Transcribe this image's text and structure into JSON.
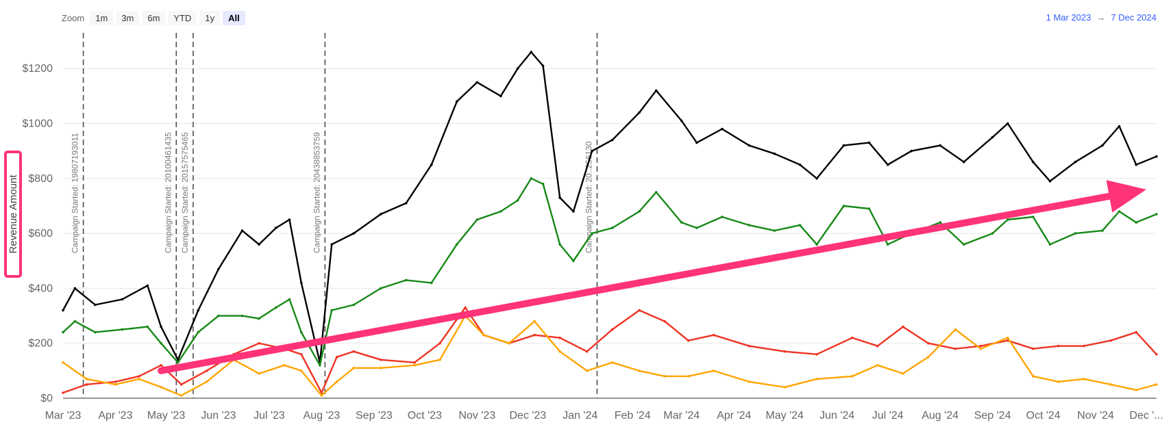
{
  "zoom": {
    "label": "Zoom",
    "buttons": [
      {
        "label": "1m",
        "active": false
      },
      {
        "label": "3m",
        "active": false
      },
      {
        "label": "6m",
        "active": false
      },
      {
        "label": "YTD",
        "active": false
      },
      {
        "label": "1y",
        "active": false
      },
      {
        "label": "All",
        "active": true
      }
    ]
  },
  "range": {
    "from": "1 Mar 2023",
    "arrow": "→",
    "to": "7 Dec 2024"
  },
  "chart_data": {
    "type": "line",
    "title": "",
    "xlabel": "",
    "ylabel": "Revenue Amount",
    "ylim": [
      0,
      1350
    ],
    "xlim": [
      "2023-03-01",
      "2024-12-07"
    ],
    "grid": true,
    "y_ticks": [
      {
        "value": 0,
        "label": "$0"
      },
      {
        "value": 200,
        "label": "$200"
      },
      {
        "value": 400,
        "label": "$400"
      },
      {
        "value": 600,
        "label": "$600"
      },
      {
        "value": 800,
        "label": "$800"
      },
      {
        "value": 1000,
        "label": "$1000"
      },
      {
        "value": 1200,
        "label": "$1200"
      }
    ],
    "x_ticks": [
      {
        "date": "2023-03-01",
        "label": "Mar '23"
      },
      {
        "date": "2023-04-01",
        "label": "Apr '23"
      },
      {
        "date": "2023-05-01",
        "label": "May '23"
      },
      {
        "date": "2023-06-01",
        "label": "Jun '23"
      },
      {
        "date": "2023-07-01",
        "label": "Jul '23"
      },
      {
        "date": "2023-08-01",
        "label": "Aug '23"
      },
      {
        "date": "2023-09-01",
        "label": "Sep '23"
      },
      {
        "date": "2023-10-01",
        "label": "Oct '23"
      },
      {
        "date": "2023-11-01",
        "label": "Nov '23"
      },
      {
        "date": "2023-12-01",
        "label": "Dec '23"
      },
      {
        "date": "2024-01-01",
        "label": "Jan '24"
      },
      {
        "date": "2024-02-01",
        "label": "Feb '24"
      },
      {
        "date": "2024-03-01",
        "label": "Mar '24"
      },
      {
        "date": "2024-04-01",
        "label": "Apr '24"
      },
      {
        "date": "2024-05-01",
        "label": "May '24"
      },
      {
        "date": "2024-06-01",
        "label": "Jun '24"
      },
      {
        "date": "2024-07-01",
        "label": "Jul '24"
      },
      {
        "date": "2024-08-01",
        "label": "Aug '24"
      },
      {
        "date": "2024-09-01",
        "label": "Sep '24"
      },
      {
        "date": "2024-10-01",
        "label": "Oct '24"
      },
      {
        "date": "2024-11-01",
        "label": "Nov '24"
      },
      {
        "date": "2024-12-01",
        "label": "Dec '..."
      }
    ],
    "plot_lines": [
      {
        "date": "2023-03-13",
        "label": "Campaign Started: 19807193011"
      },
      {
        "date": "2023-05-07",
        "label": "Campaign Started: 20100461435"
      },
      {
        "date": "2023-05-17",
        "label": "Campaign Started: 20157575465"
      },
      {
        "date": "2023-08-03",
        "label": "Campaign Started: 20438853759"
      },
      {
        "date": "2024-01-11",
        "label": "Campaign Started: 20..256130"
      }
    ],
    "series": [
      {
        "color": "#000000",
        "x": [
          "2023-03-01",
          "2023-03-08",
          "2023-03-20",
          "2023-04-05",
          "2023-04-20",
          "2023-04-28",
          "2023-05-08",
          "2023-05-20",
          "2023-06-01",
          "2023-06-15",
          "2023-06-25",
          "2023-07-05",
          "2023-07-13",
          "2023-07-20",
          "2023-07-31",
          "2023-08-07",
          "2023-08-20",
          "2023-09-05",
          "2023-09-20",
          "2023-10-05",
          "2023-10-20",
          "2023-11-01",
          "2023-11-15",
          "2023-11-25",
          "2023-12-03",
          "2023-12-10",
          "2023-12-20",
          "2023-12-28",
          "2024-01-08",
          "2024-01-20",
          "2024-02-05",
          "2024-02-15",
          "2024-03-01",
          "2024-03-10",
          "2024-03-25",
          "2024-04-10",
          "2024-04-25",
          "2024-05-10",
          "2024-05-20",
          "2024-06-05",
          "2024-06-20",
          "2024-07-01",
          "2024-07-15",
          "2024-08-01",
          "2024-08-15",
          "2024-09-01",
          "2024-09-10",
          "2024-09-25",
          "2024-10-05",
          "2024-10-20",
          "2024-11-05",
          "2024-11-15",
          "2024-11-25",
          "2024-12-07"
        ],
        "y": [
          320,
          400,
          340,
          360,
          410,
          260,
          140,
          320,
          470,
          610,
          560,
          620,
          650,
          420,
          130,
          560,
          600,
          670,
          710,
          850,
          1080,
          1150,
          1100,
          1200,
          1260,
          1210,
          730,
          680,
          900,
          940,
          1040,
          1120,
          1010,
          930,
          980,
          920,
          890,
          850,
          800,
          920,
          930,
          850,
          900,
          920,
          860,
          950,
          1000,
          860,
          790,
          860,
          920,
          990,
          850,
          880
        ]
      },
      {
        "color": "#168816",
        "x": [
          "2023-03-01",
          "2023-03-08",
          "2023-03-20",
          "2023-04-05",
          "2023-04-20",
          "2023-04-28",
          "2023-05-08",
          "2023-05-20",
          "2023-06-01",
          "2023-06-15",
          "2023-06-25",
          "2023-07-05",
          "2023-07-13",
          "2023-07-20",
          "2023-07-31",
          "2023-08-07",
          "2023-08-20",
          "2023-09-05",
          "2023-09-20",
          "2023-10-05",
          "2023-10-20",
          "2023-11-01",
          "2023-11-15",
          "2023-11-25",
          "2023-12-03",
          "2023-12-10",
          "2023-12-20",
          "2023-12-28",
          "2024-01-08",
          "2024-01-20",
          "2024-02-05",
          "2024-02-15",
          "2024-03-01",
          "2024-03-10",
          "2024-03-25",
          "2024-04-10",
          "2024-04-25",
          "2024-05-10",
          "2024-05-20",
          "2024-06-05",
          "2024-06-20",
          "2024-07-01",
          "2024-07-15",
          "2024-08-01",
          "2024-08-15",
          "2024-09-01",
          "2024-09-10",
          "2024-09-25",
          "2024-10-05",
          "2024-10-20",
          "2024-11-05",
          "2024-11-15",
          "2024-11-25",
          "2024-12-07"
        ],
        "y": [
          240,
          280,
          240,
          250,
          260,
          200,
          130,
          240,
          300,
          300,
          290,
          330,
          360,
          240,
          120,
          320,
          340,
          400,
          430,
          420,
          560,
          650,
          680,
          720,
          800,
          780,
          560,
          500,
          600,
          620,
          680,
          750,
          640,
          620,
          660,
          630,
          610,
          630,
          560,
          700,
          690,
          560,
          600,
          640,
          560,
          600,
          650,
          660,
          560,
          600,
          610,
          680,
          640,
          670
        ]
      },
      {
        "color": "#ee3322",
        "x": [
          "2023-03-01",
          "2023-03-15",
          "2023-04-01",
          "2023-04-15",
          "2023-04-28",
          "2023-05-10",
          "2023-05-25",
          "2023-06-10",
          "2023-06-25",
          "2023-07-10",
          "2023-07-20",
          "2023-08-01",
          "2023-08-10",
          "2023-08-20",
          "2023-09-05",
          "2023-09-25",
          "2023-10-10",
          "2023-10-25",
          "2023-11-05",
          "2023-11-20",
          "2023-12-05",
          "2023-12-20",
          "2024-01-05",
          "2024-01-20",
          "2024-02-05",
          "2024-02-20",
          "2024-03-05",
          "2024-03-20",
          "2024-04-10",
          "2024-05-01",
          "2024-05-20",
          "2024-06-10",
          "2024-06-25",
          "2024-07-10",
          "2024-07-25",
          "2024-08-10",
          "2024-08-25",
          "2024-09-10",
          "2024-09-25",
          "2024-10-10",
          "2024-10-25",
          "2024-11-10",
          "2024-11-25",
          "2024-12-07"
        ],
        "y": [
          20,
          50,
          60,
          80,
          120,
          50,
          100,
          160,
          200,
          180,
          160,
          20,
          150,
          170,
          140,
          130,
          200,
          330,
          230,
          200,
          230,
          220,
          170,
          250,
          320,
          280,
          210,
          230,
          190,
          170,
          160,
          220,
          190,
          260,
          200,
          180,
          190,
          210,
          180,
          190,
          190,
          210,
          240,
          160
        ]
      },
      {
        "color": "#ffa500",
        "x": [
          "2023-03-01",
          "2023-03-15",
          "2023-04-01",
          "2023-04-15",
          "2023-04-28",
          "2023-05-10",
          "2023-05-25",
          "2023-06-10",
          "2023-06-25",
          "2023-07-10",
          "2023-07-20",
          "2023-08-01",
          "2023-08-10",
          "2023-08-20",
          "2023-09-05",
          "2023-09-25",
          "2023-10-10",
          "2023-10-25",
          "2023-11-05",
          "2023-11-20",
          "2023-12-05",
          "2023-12-20",
          "2024-01-05",
          "2024-01-20",
          "2024-02-05",
          "2024-02-20",
          "2024-03-05",
          "2024-03-20",
          "2024-04-10",
          "2024-05-01",
          "2024-05-20",
          "2024-06-10",
          "2024-06-25",
          "2024-07-10",
          "2024-07-25",
          "2024-08-10",
          "2024-08-25",
          "2024-09-10",
          "2024-09-25",
          "2024-10-10",
          "2024-10-25",
          "2024-11-10",
          "2024-11-25",
          "2024-12-07"
        ],
        "y": [
          130,
          70,
          50,
          70,
          40,
          10,
          60,
          140,
          90,
          120,
          100,
          10,
          60,
          110,
          110,
          120,
          140,
          300,
          230,
          200,
          280,
          170,
          100,
          130,
          100,
          80,
          80,
          100,
          60,
          40,
          70,
          80,
          120,
          90,
          150,
          250,
          180,
          220,
          80,
          60,
          70,
          50,
          30,
          50
        ]
      }
    ],
    "annotation_arrow": {
      "from": [
        "2023-04-28",
        100
      ],
      "to": [
        "2024-12-01",
        760
      ],
      "color": "#ff3377"
    },
    "ylabel_highlight_color": "#ff3377"
  }
}
